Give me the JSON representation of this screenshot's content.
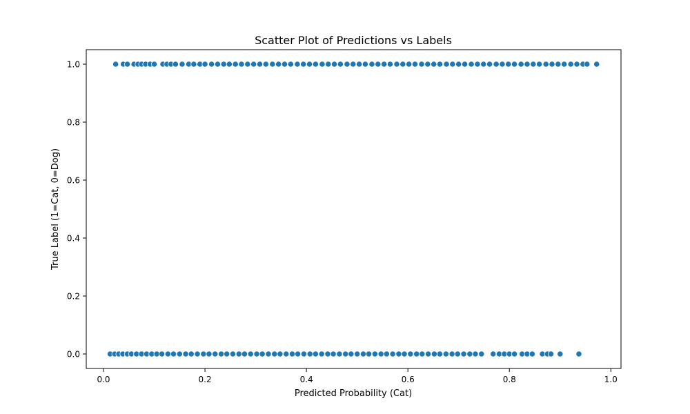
{
  "chart_data": {
    "type": "scatter",
    "title": "Scatter Plot of Predictions vs Labels",
    "xlabel": "Predicted Probability (Cat)",
    "ylabel": "True Label (1=Cat, 0=Dog)",
    "xlim": [
      -0.034,
      1.02
    ],
    "ylim": [
      -0.05,
      1.05
    ],
    "xticks": [
      0.0,
      0.2,
      0.4,
      0.6,
      0.8,
      1.0
    ],
    "yticks": [
      0.0,
      0.2,
      0.4,
      0.6,
      0.8,
      1.0
    ],
    "xtick_labels": [
      "0.0",
      "0.2",
      "0.4",
      "0.6",
      "0.8",
      "1.0"
    ],
    "ytick_labels": [
      "0.0",
      "0.2",
      "0.4",
      "0.6",
      "0.8",
      "1.0"
    ],
    "grid": false,
    "legend": false,
    "marker_color": "#1f77b4",
    "marker_edge_color": "#ffffff",
    "points": [
      {
        "x": 0.024,
        "y": 1
      },
      {
        "x": 0.039,
        "y": 1
      },
      {
        "x": 0.047,
        "y": 1
      },
      {
        "x": 0.06,
        "y": 1
      },
      {
        "x": 0.068,
        "y": 1
      },
      {
        "x": 0.075,
        "y": 1
      },
      {
        "x": 0.083,
        "y": 1
      },
      {
        "x": 0.092,
        "y": 1
      },
      {
        "x": 0.1,
        "y": 1
      },
      {
        "x": 0.117,
        "y": 1
      },
      {
        "x": 0.125,
        "y": 1
      },
      {
        "x": 0.133,
        "y": 1
      },
      {
        "x": 0.142,
        "y": 1
      },
      {
        "x": 0.155,
        "y": 1
      },
      {
        "x": 0.168,
        "y": 1
      },
      {
        "x": 0.178,
        "y": 1
      },
      {
        "x": 0.19,
        "y": 1
      },
      {
        "x": 0.2,
        "y": 1
      },
      {
        "x": 0.213,
        "y": 1
      },
      {
        "x": 0.225,
        "y": 1
      },
      {
        "x": 0.237,
        "y": 1
      },
      {
        "x": 0.248,
        "y": 1
      },
      {
        "x": 0.26,
        "y": 1
      },
      {
        "x": 0.272,
        "y": 1
      },
      {
        "x": 0.284,
        "y": 1
      },
      {
        "x": 0.296,
        "y": 1
      },
      {
        "x": 0.308,
        "y": 1
      },
      {
        "x": 0.32,
        "y": 1
      },
      {
        "x": 0.333,
        "y": 1
      },
      {
        "x": 0.345,
        "y": 1
      },
      {
        "x": 0.357,
        "y": 1
      },
      {
        "x": 0.369,
        "y": 1
      },
      {
        "x": 0.382,
        "y": 1
      },
      {
        "x": 0.394,
        "y": 1
      },
      {
        "x": 0.406,
        "y": 1
      },
      {
        "x": 0.418,
        "y": 1
      },
      {
        "x": 0.431,
        "y": 1
      },
      {
        "x": 0.443,
        "y": 1
      },
      {
        "x": 0.455,
        "y": 1
      },
      {
        "x": 0.467,
        "y": 1
      },
      {
        "x": 0.48,
        "y": 1
      },
      {
        "x": 0.492,
        "y": 1
      },
      {
        "x": 0.504,
        "y": 1
      },
      {
        "x": 0.516,
        "y": 1
      },
      {
        "x": 0.529,
        "y": 1
      },
      {
        "x": 0.541,
        "y": 1
      },
      {
        "x": 0.553,
        "y": 1
      },
      {
        "x": 0.565,
        "y": 1
      },
      {
        "x": 0.578,
        "y": 1
      },
      {
        "x": 0.59,
        "y": 1
      },
      {
        "x": 0.602,
        "y": 1
      },
      {
        "x": 0.614,
        "y": 1
      },
      {
        "x": 0.627,
        "y": 1
      },
      {
        "x": 0.639,
        "y": 1
      },
      {
        "x": 0.651,
        "y": 1
      },
      {
        "x": 0.663,
        "y": 1
      },
      {
        "x": 0.676,
        "y": 1
      },
      {
        "x": 0.688,
        "y": 1
      },
      {
        "x": 0.7,
        "y": 1
      },
      {
        "x": 0.712,
        "y": 1
      },
      {
        "x": 0.725,
        "y": 1
      },
      {
        "x": 0.737,
        "y": 1
      },
      {
        "x": 0.749,
        "y": 1
      },
      {
        "x": 0.761,
        "y": 1
      },
      {
        "x": 0.774,
        "y": 1
      },
      {
        "x": 0.786,
        "y": 1
      },
      {
        "x": 0.798,
        "y": 1
      },
      {
        "x": 0.81,
        "y": 1
      },
      {
        "x": 0.823,
        "y": 1
      },
      {
        "x": 0.835,
        "y": 1
      },
      {
        "x": 0.847,
        "y": 1
      },
      {
        "x": 0.859,
        "y": 1
      },
      {
        "x": 0.872,
        "y": 1
      },
      {
        "x": 0.884,
        "y": 1
      },
      {
        "x": 0.896,
        "y": 1
      },
      {
        "x": 0.908,
        "y": 1
      },
      {
        "x": 0.921,
        "y": 1
      },
      {
        "x": 0.933,
        "y": 1
      },
      {
        "x": 0.945,
        "y": 1
      },
      {
        "x": 0.953,
        "y": 1
      },
      {
        "x": 0.972,
        "y": 1
      },
      {
        "x": 0.013,
        "y": 0
      },
      {
        "x": 0.022,
        "y": 0
      },
      {
        "x": 0.03,
        "y": 0
      },
      {
        "x": 0.038,
        "y": 0
      },
      {
        "x": 0.047,
        "y": 0
      },
      {
        "x": 0.055,
        "y": 0
      },
      {
        "x": 0.065,
        "y": 0
      },
      {
        "x": 0.075,
        "y": 0
      },
      {
        "x": 0.085,
        "y": 0
      },
      {
        "x": 0.095,
        "y": 0
      },
      {
        "x": 0.105,
        "y": 0
      },
      {
        "x": 0.115,
        "y": 0
      },
      {
        "x": 0.127,
        "y": 0
      },
      {
        "x": 0.138,
        "y": 0
      },
      {
        "x": 0.15,
        "y": 0
      },
      {
        "x": 0.162,
        "y": 0
      },
      {
        "x": 0.173,
        "y": 0
      },
      {
        "x": 0.185,
        "y": 0
      },
      {
        "x": 0.197,
        "y": 0
      },
      {
        "x": 0.208,
        "y": 0
      },
      {
        "x": 0.22,
        "y": 0
      },
      {
        "x": 0.232,
        "y": 0
      },
      {
        "x": 0.243,
        "y": 0
      },
      {
        "x": 0.255,
        "y": 0
      },
      {
        "x": 0.267,
        "y": 0
      },
      {
        "x": 0.278,
        "y": 0
      },
      {
        "x": 0.29,
        "y": 0
      },
      {
        "x": 0.302,
        "y": 0
      },
      {
        "x": 0.313,
        "y": 0
      },
      {
        "x": 0.325,
        "y": 0
      },
      {
        "x": 0.337,
        "y": 0
      },
      {
        "x": 0.348,
        "y": 0
      },
      {
        "x": 0.36,
        "y": 0
      },
      {
        "x": 0.372,
        "y": 0
      },
      {
        "x": 0.383,
        "y": 0
      },
      {
        "x": 0.395,
        "y": 0
      },
      {
        "x": 0.407,
        "y": 0
      },
      {
        "x": 0.418,
        "y": 0
      },
      {
        "x": 0.43,
        "y": 0
      },
      {
        "x": 0.442,
        "y": 0
      },
      {
        "x": 0.453,
        "y": 0
      },
      {
        "x": 0.465,
        "y": 0
      },
      {
        "x": 0.477,
        "y": 0
      },
      {
        "x": 0.488,
        "y": 0
      },
      {
        "x": 0.5,
        "y": 0
      },
      {
        "x": 0.512,
        "y": 0
      },
      {
        "x": 0.523,
        "y": 0
      },
      {
        "x": 0.535,
        "y": 0
      },
      {
        "x": 0.547,
        "y": 0
      },
      {
        "x": 0.558,
        "y": 0
      },
      {
        "x": 0.57,
        "y": 0
      },
      {
        "x": 0.582,
        "y": 0
      },
      {
        "x": 0.593,
        "y": 0
      },
      {
        "x": 0.605,
        "y": 0
      },
      {
        "x": 0.617,
        "y": 0
      },
      {
        "x": 0.628,
        "y": 0
      },
      {
        "x": 0.64,
        "y": 0
      },
      {
        "x": 0.652,
        "y": 0
      },
      {
        "x": 0.663,
        "y": 0
      },
      {
        "x": 0.675,
        "y": 0
      },
      {
        "x": 0.687,
        "y": 0
      },
      {
        "x": 0.698,
        "y": 0
      },
      {
        "x": 0.71,
        "y": 0
      },
      {
        "x": 0.722,
        "y": 0
      },
      {
        "x": 0.733,
        "y": 0
      },
      {
        "x": 0.745,
        "y": 0
      },
      {
        "x": 0.768,
        "y": 0
      },
      {
        "x": 0.78,
        "y": 0
      },
      {
        "x": 0.79,
        "y": 0
      },
      {
        "x": 0.8,
        "y": 0
      },
      {
        "x": 0.81,
        "y": 0
      },
      {
        "x": 0.825,
        "y": 0
      },
      {
        "x": 0.835,
        "y": 0
      },
      {
        "x": 0.845,
        "y": 0
      },
      {
        "x": 0.865,
        "y": 0
      },
      {
        "x": 0.875,
        "y": 0
      },
      {
        "x": 0.882,
        "y": 0
      },
      {
        "x": 0.9,
        "y": 0
      },
      {
        "x": 0.937,
        "y": 0
      }
    ]
  }
}
